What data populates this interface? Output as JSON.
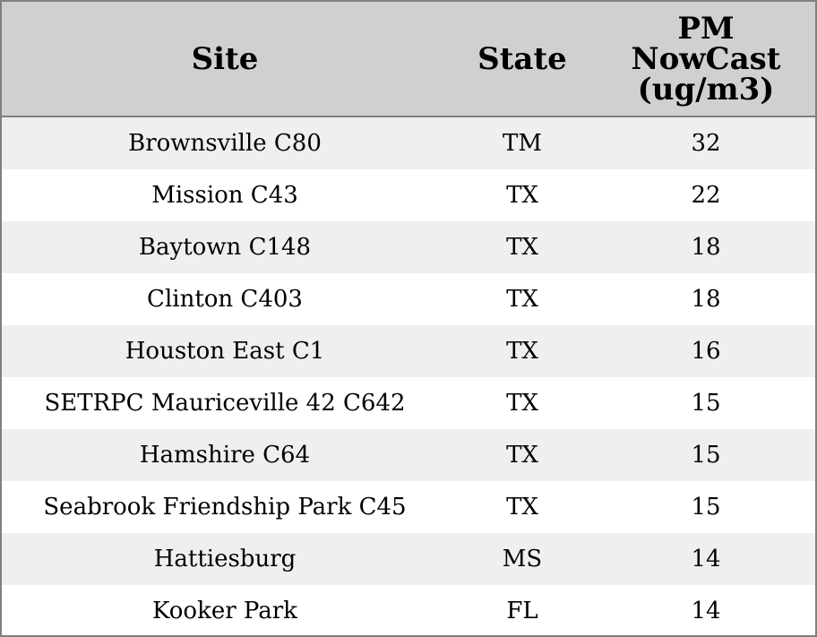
{
  "table": {
    "headers": [
      "Site",
      "State",
      "PM NowCast (ug/m3)"
    ],
    "rows": [
      [
        "Brownsville C80",
        "TM",
        32
      ],
      [
        "Mission C43",
        "TX",
        22
      ],
      [
        "Baytown C148",
        "TX",
        18
      ],
      [
        "Clinton C403",
        "TX",
        18
      ],
      [
        "Houston East C1",
        "TX",
        16
      ],
      [
        "SETRPC Mauriceville 42 C642",
        "TX",
        15
      ],
      [
        "Hamshire C64",
        "TX",
        15
      ],
      [
        "Seabrook Friendship Park C45",
        "TX",
        15
      ],
      [
        "Hattiesburg",
        "MS",
        14
      ],
      [
        "Kooker Park",
        "FL",
        14
      ]
    ]
  }
}
